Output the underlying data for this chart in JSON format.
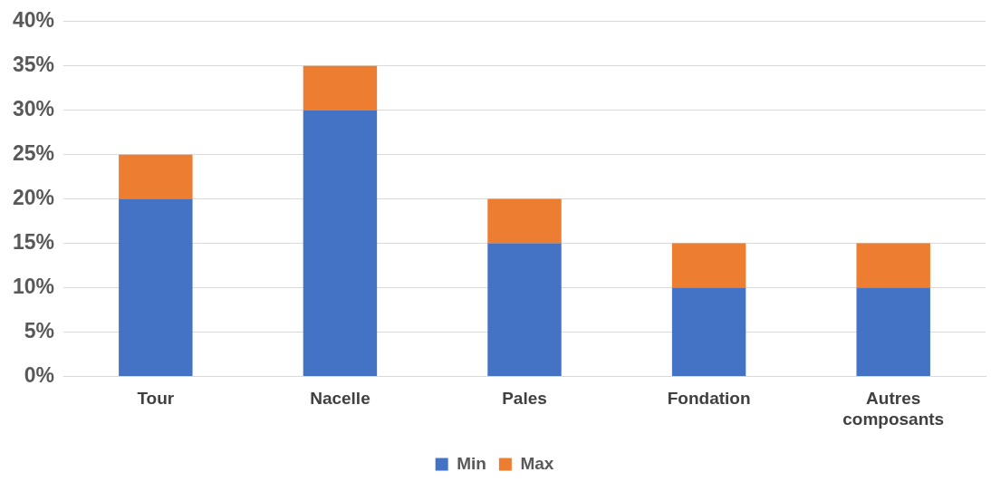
{
  "chart_data": {
    "type": "bar",
    "stacked": true,
    "categories": [
      "Tour",
      "Nacelle",
      "Pales",
      "Fondation",
      "Autres composants"
    ],
    "series": [
      {
        "name": "Min",
        "color": "#4472c4",
        "values": [
          20,
          30,
          15,
          10,
          10
        ]
      },
      {
        "name": "Max",
        "color": "#ed7d31",
        "values": [
          5,
          5,
          5,
          5,
          5
        ]
      }
    ],
    "ylim": [
      0,
      40
    ],
    "yticks": [
      {
        "value": 0,
        "label": "0%"
      },
      {
        "value": 5,
        "label": "5%"
      },
      {
        "value": 10,
        "label": "10%"
      },
      {
        "value": 15,
        "label": "15%"
      },
      {
        "value": 20,
        "label": "20%"
      },
      {
        "value": 25,
        "label": "25%"
      },
      {
        "value": 30,
        "label": "30%"
      },
      {
        "value": 35,
        "label": "35%"
      },
      {
        "value": 40,
        "label": "40%"
      }
    ],
    "grid": "y",
    "legend": "bottom"
  }
}
